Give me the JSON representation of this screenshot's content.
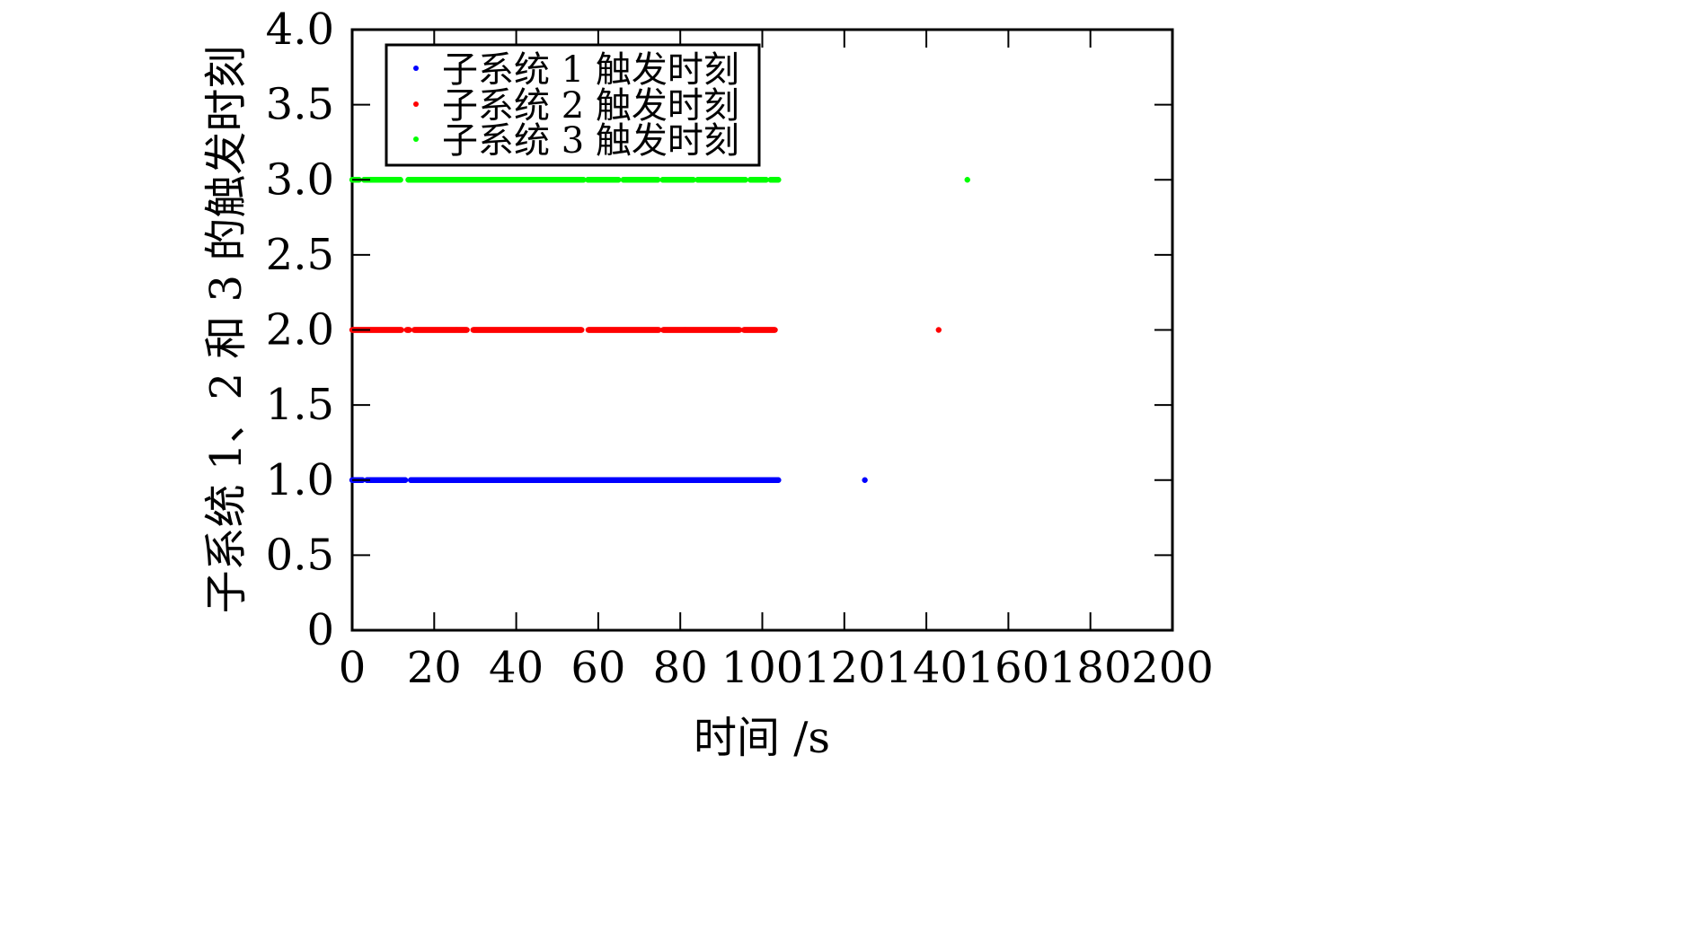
{
  "chart_data": {
    "type": "scatter",
    "title": "",
    "xlabel": "时间 /s",
    "ylabel": "子系统 1、2 和 3 的触发时刻",
    "xlim": [
      0,
      200
    ],
    "ylim": [
      0,
      4.0
    ],
    "x_ticks": [
      0,
      20,
      40,
      60,
      80,
      100,
      120,
      140,
      160,
      180,
      200
    ],
    "x_tick_labels": [
      "0",
      "20",
      "40",
      "60",
      "80",
      "100",
      "120",
      "140",
      "160",
      "180",
      "200"
    ],
    "y_ticks": [
      0,
      0.5,
      1.0,
      1.5,
      2.0,
      2.5,
      3.0,
      3.5,
      4.0
    ],
    "y_tick_labels": [
      "0",
      "0.5",
      "1.0",
      "1.5",
      "2.0",
      "2.5",
      "3.0",
      "3.5",
      "4.0"
    ],
    "grid": false,
    "legend_position": "top-left",
    "series": [
      {
        "name": "子系统 1 触发时刻",
        "color": "#0000ff",
        "y": 1.0,
        "dense_range": [
          0,
          104
        ],
        "gaps": [
          [
            2.6,
            3.6
          ],
          [
            13.0,
            14.2
          ]
        ],
        "isolated_x": [
          125
        ]
      },
      {
        "name": "子系统 2 触发时刻",
        "color": "#ff0000",
        "y": 2.0,
        "dense_range": [
          0,
          104
        ],
        "gaps": [
          [
            12.0,
            13.2
          ],
          [
            14.0,
            15.0
          ],
          [
            28.0,
            29.5
          ],
          [
            56.0,
            57.5
          ],
          [
            74.8,
            75.8
          ],
          [
            94.5,
            95.5
          ],
          [
            103.2,
            104.2
          ]
        ],
        "isolated_x": [
          143
        ]
      },
      {
        "name": "子系统 3 触发时刻",
        "color": "#00ff00",
        "y": 3.0,
        "dense_range": [
          0,
          104
        ],
        "gaps": [
          [
            1.8,
            2.8
          ],
          [
            11.8,
            13.6
          ],
          [
            56.4,
            57.4
          ],
          [
            65.0,
            66.0
          ],
          [
            74.6,
            75.6
          ],
          [
            83.2,
            84.2
          ],
          [
            96.0,
            97.0
          ],
          [
            101.0,
            102.0
          ]
        ],
        "isolated_x": [
          150
        ]
      }
    ]
  }
}
